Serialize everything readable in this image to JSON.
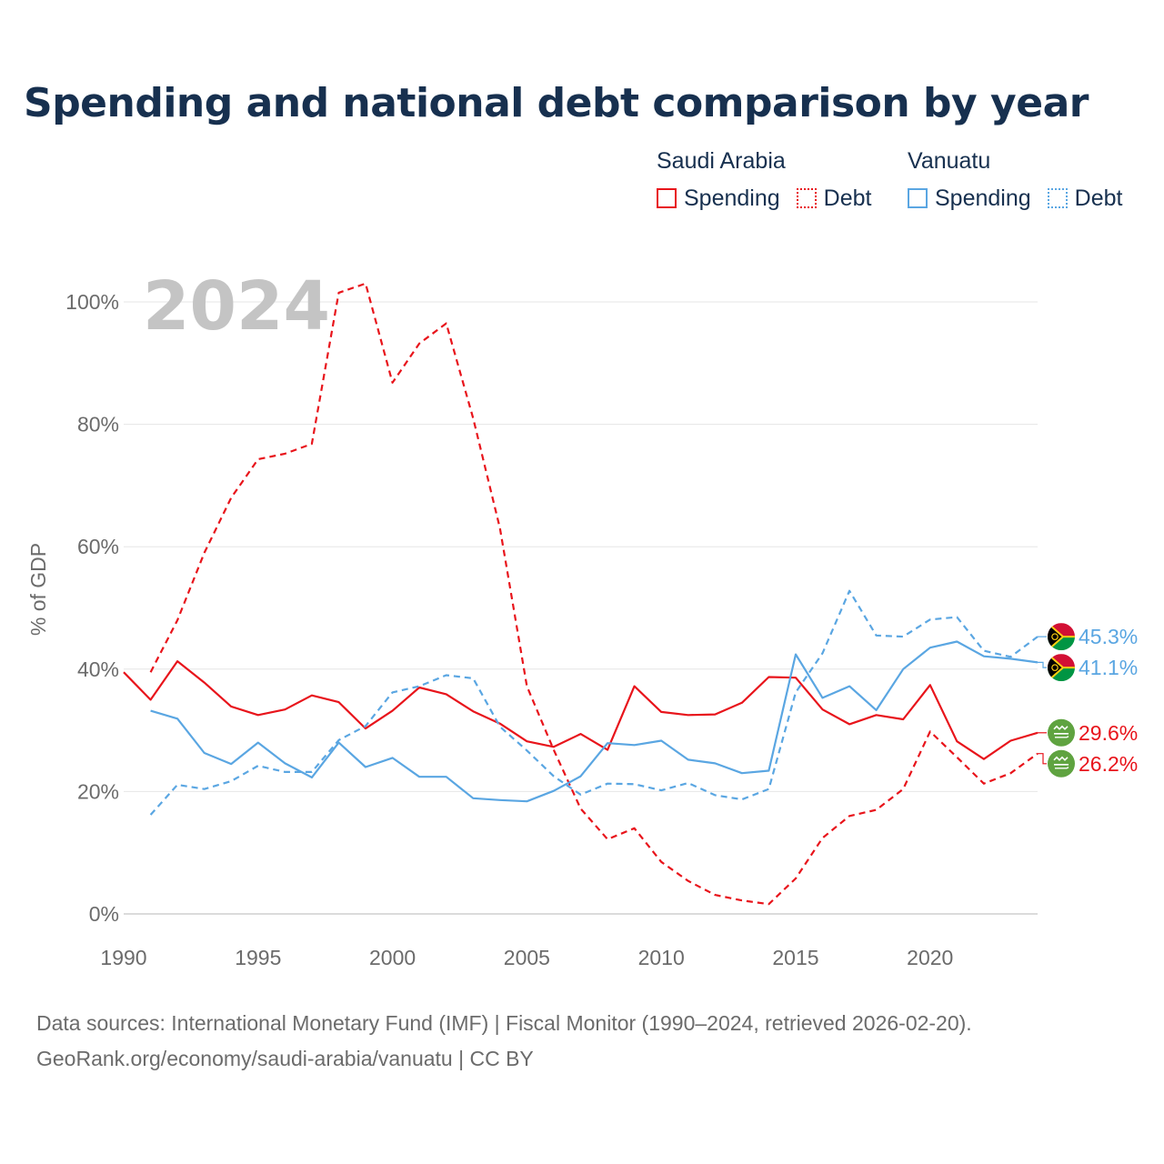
{
  "title": "Spending and national debt comparison by year",
  "year_watermark": "2024",
  "legend": {
    "groups": [
      {
        "country": "Saudi Arabia",
        "color": "#e8141b",
        "items": [
          {
            "label": "Spending",
            "style": "solid"
          },
          {
            "label": "Debt",
            "style": "dotted"
          }
        ]
      },
      {
        "country": "Vanuatu",
        "color": "#5aa6e2",
        "items": [
          {
            "label": "Spending",
            "style": "solid"
          },
          {
            "label": "Debt",
            "style": "dotted"
          }
        ]
      }
    ]
  },
  "chart_data": {
    "type": "line",
    "ylabel": "% of GDP",
    "xlabel": "",
    "xlim": [
      1990,
      2024
    ],
    "ylim": [
      0,
      100
    ],
    "x_ticks": [
      "1990",
      "1995",
      "2000",
      "2005",
      "2010",
      "2015",
      "2020"
    ],
    "y_ticks": [
      "0%",
      "20%",
      "40%",
      "60%",
      "80%",
      "100%"
    ],
    "grid": true,
    "series": [
      {
        "name": "Saudi Arabia Spending",
        "country": "Saudi Arabia",
        "metric": "Spending",
        "color": "#e8141b",
        "dash": false,
        "x": [
          1990,
          1991,
          1992,
          1993,
          1994,
          1995,
          1996,
          1997,
          1998,
          1999,
          2000,
          2001,
          2002,
          2003,
          2004,
          2005,
          2006,
          2007,
          2008,
          2009,
          2010,
          2011,
          2012,
          2013,
          2014,
          2015,
          2016,
          2017,
          2018,
          2019,
          2020,
          2021,
          2022,
          2023,
          2024
        ],
        "values": [
          39.5,
          35.0,
          41.3,
          37.8,
          33.9,
          32.5,
          33.4,
          35.7,
          34.6,
          30.3,
          33.2,
          37.0,
          35.9,
          33.1,
          31.1,
          28.2,
          27.3,
          29.4,
          26.8,
          37.2,
          33.0,
          32.5,
          32.6,
          34.5,
          38.7,
          38.6,
          33.4,
          31.0,
          32.5,
          31.8,
          37.4,
          28.2,
          25.3,
          28.3,
          29.6
        ],
        "end_label": "29.6%"
      },
      {
        "name": "Saudi Arabia Debt",
        "country": "Saudi Arabia",
        "metric": "Debt",
        "color": "#e8141b",
        "dash": true,
        "x": [
          1991,
          1992,
          1993,
          1994,
          1995,
          1996,
          1997,
          1998,
          1999,
          2000,
          2001,
          2002,
          2003,
          2004,
          2005,
          2006,
          2007,
          2008,
          2009,
          2010,
          2011,
          2012,
          2013,
          2014,
          2015,
          2016,
          2017,
          2018,
          2019,
          2020,
          2021,
          2022,
          2023,
          2024
        ],
        "values": [
          39.5,
          48.0,
          59.0,
          68.0,
          74.3,
          75.2,
          76.8,
          101.5,
          103.0,
          86.8,
          93.2,
          96.5,
          81.0,
          63.0,
          37.2,
          26.8,
          17.2,
          12.2,
          14.0,
          8.5,
          5.4,
          3.1,
          2.2,
          1.6,
          5.8,
          12.4,
          16.0,
          17.0,
          20.4,
          29.8,
          25.6,
          21.3,
          23.0,
          26.2
        ],
        "end_label": "26.2%"
      },
      {
        "name": "Vanuatu Spending",
        "country": "Vanuatu",
        "metric": "Spending",
        "color": "#5aa6e2",
        "dash": false,
        "x": [
          1991,
          1992,
          1993,
          1994,
          1995,
          1996,
          1997,
          1998,
          1999,
          2000,
          2001,
          2002,
          2003,
          2004,
          2005,
          2006,
          2007,
          2008,
          2009,
          2010,
          2011,
          2012,
          2013,
          2014,
          2015,
          2016,
          2017,
          2018,
          2019,
          2020,
          2021,
          2022,
          2023,
          2024
        ],
        "values": [
          33.2,
          31.9,
          26.3,
          24.5,
          28.0,
          24.6,
          22.3,
          28.0,
          24.0,
          25.5,
          22.4,
          22.4,
          18.9,
          18.6,
          18.4,
          20.1,
          22.5,
          27.9,
          27.6,
          28.3,
          25.2,
          24.6,
          23.0,
          23.4,
          42.4,
          35.3,
          37.2,
          33.3,
          40.0,
          43.5,
          44.5,
          42.1,
          41.7,
          41.1
        ],
        "end_label": "41.1%"
      },
      {
        "name": "Vanuatu Debt",
        "country": "Vanuatu",
        "metric": "Debt",
        "color": "#5aa6e2",
        "dash": true,
        "x": [
          1991,
          1992,
          1993,
          1994,
          1995,
          1996,
          1997,
          1998,
          1999,
          2000,
          2001,
          2002,
          2003,
          2004,
          2005,
          2006,
          2007,
          2008,
          2009,
          2010,
          2011,
          2012,
          2013,
          2014,
          2015,
          2016,
          2017,
          2018,
          2019,
          2020,
          2021,
          2022,
          2023,
          2024
        ],
        "values": [
          16.2,
          21.1,
          20.4,
          21.7,
          24.2,
          23.2,
          23.2,
          28.4,
          30.7,
          36.2,
          37.2,
          39.0,
          38.5,
          30.6,
          26.7,
          22.5,
          19.5,
          21.3,
          21.2,
          20.2,
          21.4,
          19.4,
          18.7,
          20.4,
          36.2,
          42.6,
          52.8,
          45.5,
          45.3,
          48.1,
          48.5,
          43.0,
          42.0,
          45.3
        ],
        "end_label": "45.3%"
      }
    ]
  },
  "source_lines": [
    "Data sources: International Monetary Fund (IMF) | Fiscal Monitor (1990–2024, retrieved 2026-02-20).",
    "GeoRank.org/economy/saudi-arabia/vanuatu | CC BY"
  ]
}
